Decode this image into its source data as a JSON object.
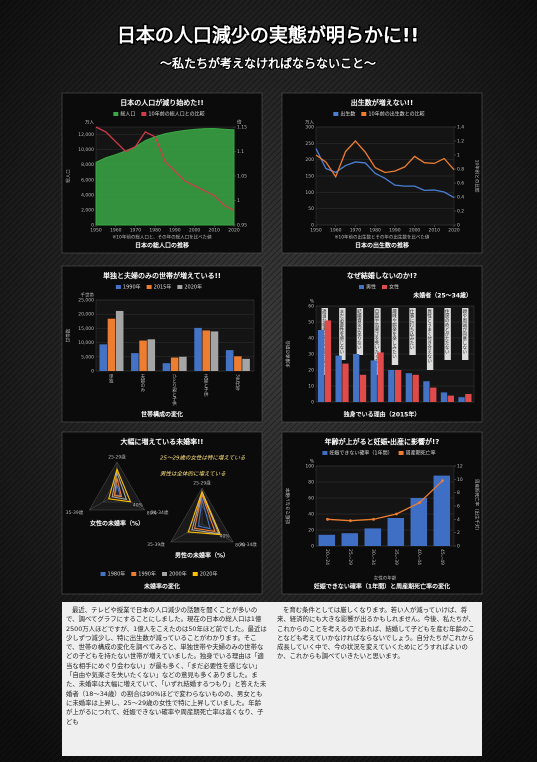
{
  "header": {
    "title": "日本の人口減少の実態が明らかに!!",
    "subtitle": "～私たちが考えなければならないこと～"
  },
  "chart_data": [
    {
      "type": "area",
      "title": "日本の人口が減り始めた!!",
      "caption": "日本の総人口の推移",
      "note": "※10年前の総人口と、その年の総人口を比べた値",
      "yunit": "万人",
      "ylabel": "総人口",
      "y2unit": "倍",
      "x": [
        1950,
        1955,
        1960,
        1965,
        1970,
        1975,
        1980,
        1985,
        1990,
        1995,
        2000,
        2005,
        2010,
        2015,
        2020
      ],
      "xlim": [
        1950,
        2020
      ],
      "xticks": [
        1950,
        1960,
        1970,
        1980,
        1990,
        2000,
        2010,
        2020
      ],
      "ylim": [
        0,
        13000
      ],
      "yticks": [
        0,
        {
          "value": 2000,
          "label": "2,000"
        },
        {
          "value": 4000,
          "label": "4,000"
        },
        {
          "value": 6000,
          "label": "6,000"
        },
        {
          "value": 8000,
          "label": "8,000"
        },
        {
          "value": 10000,
          "label": "10,000"
        },
        {
          "value": 12000,
          "label": "12,000"
        }
      ],
      "y2lim": [
        0.95,
        1.15
      ],
      "y2ticks": [
        0.95,
        1,
        1.05,
        1.1,
        1.15
      ],
      "series": [
        {
          "name": "総人口",
          "color": "#3aa845",
          "values": [
            8320,
            8928,
            9342,
            9828,
            10372,
            11194,
            11706,
            12105,
            12361,
            12557,
            12693,
            12777,
            12806,
            12709,
            12615
          ]
        },
        {
          "name": "10年前の総人口との比較",
          "color": "#d23b4a",
          "axis": "y2",
          "values": [
            1.15,
            1.14,
            1.12,
            1.1,
            1.11,
            1.14,
            1.13,
            1.08,
            1.06,
            1.04,
            1.03,
            1.02,
            1.01,
            0.99,
            0.98
          ]
        }
      ]
    },
    {
      "type": "line",
      "title": "出生数が増えない!!",
      "caption": "日本の出生数の推移",
      "note": "※10年前の出生数とその年の出生数を比べた値",
      "yunit": "万人",
      "y2label": "10年前との比較",
      "x": [
        1950,
        1955,
        1960,
        1965,
        1970,
        1975,
        1980,
        1985,
        1990,
        1995,
        2000,
        2005,
        2010,
        2015,
        2020
      ],
      "xlim": [
        1950,
        2020
      ],
      "xticks": [
        1950,
        1960,
        1970,
        1980,
        1990,
        2000,
        2010,
        2020
      ],
      "ylim": [
        0,
        300
      ],
      "yticks": [
        0,
        50,
        100,
        150,
        200,
        250,
        300
      ],
      "y2lim": [
        0,
        1.4
      ],
      "y2ticks": [
        0,
        0.2,
        0.4,
        0.6,
        0.8,
        1,
        1.2,
        1.4
      ],
      "series": [
        {
          "name": "出生数",
          "color": "#4a7fd4",
          "values": [
            234,
            173,
            161,
            182,
            193,
            190,
            158,
            143,
            122,
            119,
            119,
            106,
            107,
            101,
            84
          ]
        },
        {
          "name": "10年前の出生数との比較",
          "color": "#ed7d31",
          "axis": "y2",
          "values": [
            1.0,
            0.9,
            0.69,
            1.05,
            1.2,
            1.04,
            0.82,
            0.75,
            0.77,
            0.83,
            0.98,
            0.89,
            0.88,
            0.95,
            0.79
          ]
        }
      ]
    },
    {
      "type": "bar",
      "title": "単独と夫婦のみの世帯が増えている!!",
      "caption": "世帯構成の変化",
      "yunit": "千世帯",
      "ylabel": "世帯数",
      "categories": [
        "単独",
        "夫婦のみ",
        "ひとり親と子供",
        "夫婦と子供",
        "3世代等"
      ],
      "ylim": [
        0,
        25000
      ],
      "yticks": [
        0,
        {
          "value": 5000,
          "label": "5,000"
        },
        {
          "value": 10000,
          "label": "10,000"
        },
        {
          "value": 15000,
          "label": "15,000"
        },
        {
          "value": 20000,
          "label": "20,000"
        },
        {
          "value": 25000,
          "label": "25,000"
        }
      ],
      "series": [
        {
          "name": "1990年",
          "color": "#4472c4",
          "values": [
            9390,
            6294,
            2753,
            15172,
            7346
          ]
        },
        {
          "name": "2015年",
          "color": "#ed7d31",
          "values": [
            18418,
            10718,
            4748,
            14288,
            5187
          ]
        },
        {
          "name": "2020年",
          "color": "#a5a5a5",
          "values": [
            21151,
            11159,
            5024,
            13949,
            4283
          ]
        }
      ]
    },
    {
      "type": "bar",
      "title": "なぜ結婚しないのか!?",
      "subtitle": "未婚者（25～34歳）",
      "caption": "独身でいる理由（2015年）",
      "yunit": "%",
      "ylabel": "未婚者の割合",
      "categories": [
        "適当な相手にめぐり会わない",
        "まだ必要性を感じない",
        "結婚資金が足りない",
        "自由や気楽さを失いたくない",
        "趣味や娯楽を楽しみたい",
        "仕事に打ち込みたい",
        "異性とうまく付き合えない",
        "住居のめどがたたない",
        "親や周囲が同意しない"
      ],
      "ylim": [
        0,
        60
      ],
      "yticks": [
        0,
        10,
        20,
        30,
        40,
        50,
        60
      ],
      "series": [
        {
          "name": "男性",
          "color": "#4472c4",
          "values": [
            45,
            29,
            30,
            26,
            20,
            18,
            13,
            6,
            3
          ]
        },
        {
          "name": "女性",
          "color": "#e04a4a",
          "values": [
            51,
            24,
            17,
            31,
            20,
            17,
            9,
            4,
            5
          ]
        }
      ]
    },
    {
      "type": "radar",
      "title": "大幅に増えている未婚率!!",
      "caption": "未婚率の変化",
      "axes": [
        "25-29歳",
        "30-34歳",
        "35-39歳"
      ],
      "rlim": [
        0,
        80
      ],
      "rticks": [
        {
          "value": 40,
          "label": "40%"
        },
        {
          "value": 80,
          "label": "80%"
        }
      ],
      "series": [
        {
          "name": "1980年",
          "color": "#4472c4"
        },
        {
          "name": "1990年",
          "color": "#ed7d31"
        },
        {
          "name": "2000年",
          "color": "#a5a5a5"
        },
        {
          "name": "2020年",
          "color": "#ffc000"
        }
      ],
      "panels": [
        {
          "label": "女性の未婚率（%）",
          "annotation": "25～29歳の女性は特に増えている",
          "values": [
            [
              24,
              9,
              6
            ],
            [
              40,
              13,
              8
            ],
            [
              54,
              27,
              14
            ],
            [
              62,
              39,
              24
            ]
          ]
        },
        {
          "label": "男性の未婚率（%）",
          "annotation": "男性は全体的に増えている",
          "values": [
            [
              55,
              21,
              9
            ],
            [
              65,
              33,
              19
            ],
            [
              69,
              43,
              26
            ],
            [
              72,
              47,
              35
            ]
          ]
        }
      ]
    },
    {
      "type": "bar",
      "title": "年齢が上がると妊娠・出産に影響が!?",
      "caption": "妊娠できない確率（1年間）と周産期死亡率の変化",
      "ylabel": "妊娠できない確率",
      "yunit": "%",
      "y2label": "周産期死亡率（出生千対）",
      "xlabel": "女性の年齢",
      "categories": [
        "20～24",
        "25～29",
        "30～34",
        "35～39",
        "40～44",
        "45～49"
      ],
      "ylim": [
        0,
        100
      ],
      "yticks": [
        0,
        20,
        40,
        60,
        80,
        100
      ],
      "y2lim": [
        0,
        12
      ],
      "y2ticks": [
        0,
        2,
        4,
        6,
        8,
        10,
        12
      ],
      "series": [
        {
          "name": "妊娠できない確率（1年間）",
          "color": "#3f6fc4",
          "values": [
            14,
            16,
            22,
            35,
            60,
            88
          ]
        },
        {
          "name": "周産期死亡率",
          "color": "#ed7d31",
          "axis": "y2",
          "values": [
            4,
            3.8,
            4,
            4.8,
            6.5,
            9.8
          ]
        }
      ]
    }
  ],
  "body": {
    "left": "最近、テレビや授業で日本の人口減少の話題を聞くことが多いので、調べてグラフにすることにしました。現在の日本の総人口は1億2500万人ほどですが、1億人をこえたのは50年ほど前でした。最近は少しずつ減少し、特に出生数が減っていることがわかります。そこで、世帯の構成の変化を調べてみると、単独世帯や夫婦のみの世帯などの子どもを持たない世帯が増えていました。独身でいる理由は「適当な相手にめぐり会わない」が最も多く、「まだ必要性を感じない」「自由や気楽さを失いたくない」などの意見も多くありました。また、未婚率は大幅に増えていて、「いずれ結婚するつもり」と答えた未婚者（18～34歳）の割合は90%ほどで変わらないものの、男女ともに未婚率は上昇し、25～29歳の女性で特に上昇していました。年齢が上がるにつれて、妊娠できない確率や周産期死亡率は高くなり、子ども",
    "right": "を育む条件としては厳しくなります。若い人が減っていけば、将来、経済的にも大きな影響が出るかもしれません。今後、私たちが、これからのことを考えるのであれば、結婚して子どもを産む年齢のことなども考えていかなければならないでしょう。自分たちがこれから成長していく中で、今の状況を変えていくためにどうすればよいのか、これからも調べていきたいと思います。"
  }
}
